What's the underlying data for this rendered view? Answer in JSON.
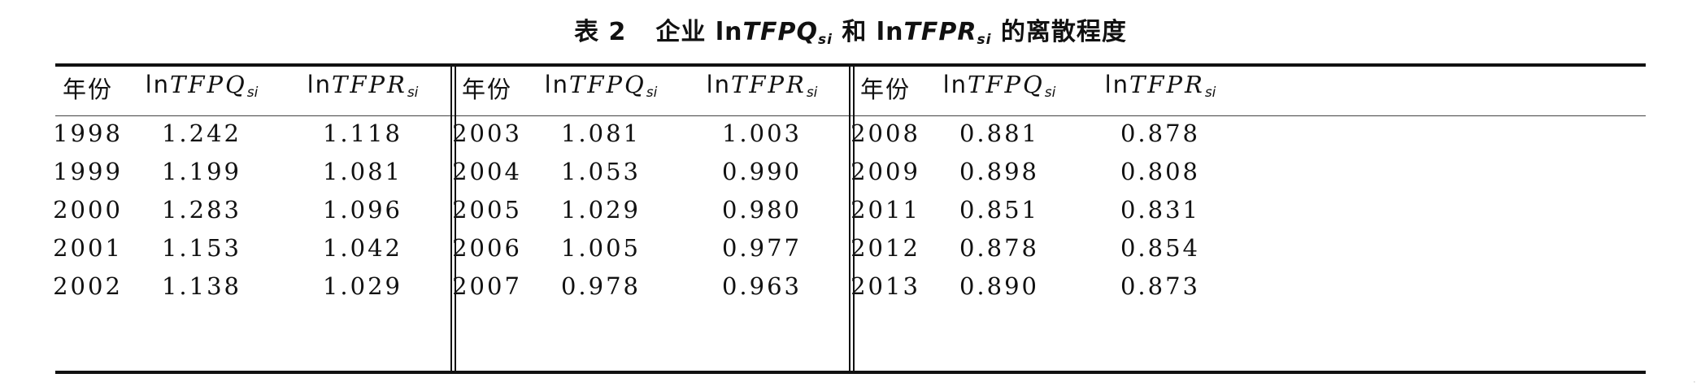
{
  "title": {
    "label": "表 2",
    "prefix": "企业 ln",
    "var1": "TFPQ",
    "sub1": "si",
    "mid": " 和 ln",
    "var2": "TFPR",
    "sub2": "si",
    "suffix": " 的离散程度"
  },
  "headers": {
    "year": "年份",
    "ln": "ln",
    "tfpq": "TFPQ",
    "tfpr": "TFPR",
    "sub": "si"
  },
  "groups": [
    {
      "rows": [
        {
          "year": "1998",
          "tfpq": "1.242",
          "tfpr": "1.118"
        },
        {
          "year": "1999",
          "tfpq": "1.199",
          "tfpr": "1.081"
        },
        {
          "year": "2000",
          "tfpq": "1.283",
          "tfpr": "1.096"
        },
        {
          "year": "2001",
          "tfpq": "1.153",
          "tfpr": "1.042"
        },
        {
          "year": "2002",
          "tfpq": "1.138",
          "tfpr": "1.029"
        }
      ]
    },
    {
      "rows": [
        {
          "year": "2003",
          "tfpq": "1.081",
          "tfpr": "1.003"
        },
        {
          "year": "2004",
          "tfpq": "1.053",
          "tfpr": "0.990"
        },
        {
          "year": "2005",
          "tfpq": "1.029",
          "tfpr": "0.980"
        },
        {
          "year": "2006",
          "tfpq": "1.005",
          "tfpr": "0.977"
        },
        {
          "year": "2007",
          "tfpq": "0.978",
          "tfpr": "0.963"
        }
      ]
    },
    {
      "rows": [
        {
          "year": "2008",
          "tfpq": "0.881",
          "tfpr": "0.878"
        },
        {
          "year": "2009",
          "tfpq": "0.898",
          "tfpr": "0.808"
        },
        {
          "year": "2011",
          "tfpq": "0.851",
          "tfpr": "0.831"
        },
        {
          "year": "2012",
          "tfpq": "0.878",
          "tfpr": "0.854"
        },
        {
          "year": "2013",
          "tfpq": "0.890",
          "tfpr": "0.873"
        }
      ]
    }
  ]
}
